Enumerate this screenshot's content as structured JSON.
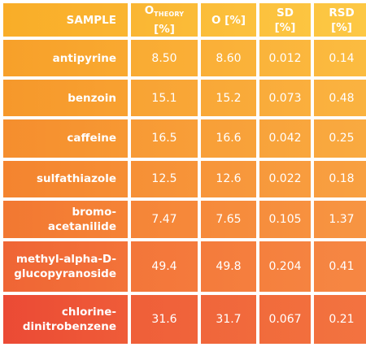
{
  "table": {
    "headers": {
      "sample": "SAMPLE",
      "o_theory_main": "O",
      "o_theory_sub": "THEORY",
      "o_theory_unit": " [%]",
      "o": "O [%]",
      "sd": "SD [%]",
      "rsd": "RSD [%]"
    },
    "rows": [
      {
        "name": "antipyrine",
        "o_theory": "8.50",
        "o": "8.60",
        "sd": "0.012",
        "rsd": "0.14"
      },
      {
        "name": "benzoin",
        "o_theory": "15.1",
        "o": "15.2",
        "sd": "0.073",
        "rsd": "0.48"
      },
      {
        "name": "caffeine",
        "o_theory": "16.5",
        "o": "16.6",
        "sd": "0.042",
        "rsd": "0.25"
      },
      {
        "name": "sulfathiazole",
        "o_theory": "12.5",
        "o": "12.6",
        "sd": "0.022",
        "rsd": "0.18"
      },
      {
        "name": "bromo-acetanilide",
        "o_theory": "7.47",
        "o": "7.65",
        "sd": "0.105",
        "rsd": "1.37"
      },
      {
        "name_line1": "methyl-alpha-D-",
        "name_line2": "glucopyranoside",
        "o_theory": "49.4",
        "o": "49.8",
        "sd": "0.204",
        "rsd": "0.41"
      },
      {
        "name_line1": "chlorine-",
        "name_line2": "dinitrobenzene",
        "o_theory": "31.6",
        "o": "31.7",
        "sd": "0.067",
        "rsd": "0.21"
      }
    ]
  },
  "colors": {
    "header": [
      "#f9b12a",
      "#fbbd35",
      "#fcc43f"
    ],
    "row1": [
      "#f8a12a",
      "#fab23a"
    ],
    "row2": [
      "#f79a2c",
      "#faac3b"
    ],
    "row3": [
      "#f69030",
      "#f9a53c"
    ],
    "row4": [
      "#f5862f",
      "#f89d3b"
    ],
    "row5": [
      "#f37a33",
      "#f7913b"
    ],
    "row6": [
      "#f06836",
      "#f5823c"
    ],
    "row7": [
      "#ec4f36",
      "#f27339"
    ]
  }
}
